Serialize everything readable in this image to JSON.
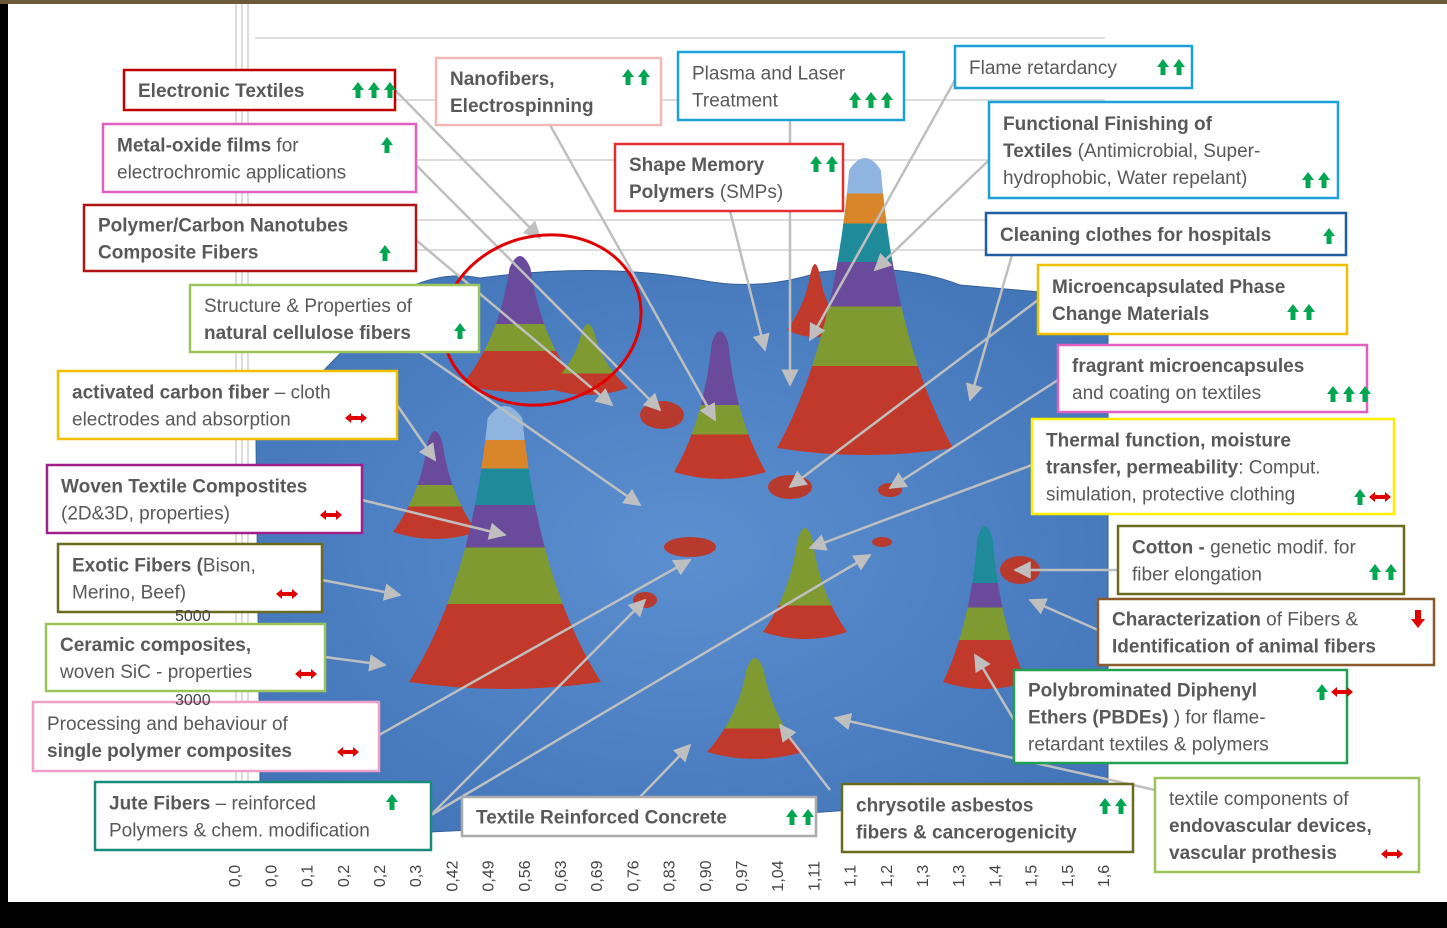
{
  "labels": [
    {
      "lines": [
        [
          "Electronic Textiles"
        ]
      ]
    },
    {
      "lines": [
        [
          "Metal-oxide films",
          " for"
        ],
        [
          "electrochromic applications"
        ]
      ]
    },
    {
      "lines": [
        [
          "Polymer/Carbon Nanotubes"
        ],
        [
          "Composite Fibers"
        ]
      ]
    },
    {
      "lines": [
        [
          "Nanofibers,"
        ],
        [
          "Electrospinning"
        ]
      ]
    },
    {
      "lines": [
        [
          "Plasma and Laser"
        ],
        [
          "Treatment"
        ]
      ]
    },
    {
      "lines": [
        [
          "Flame retardancy"
        ]
      ]
    },
    {
      "lines": [
        [
          "Functional Finishing of"
        ],
        [
          "Textiles",
          " (Antimicrobial, Super-"
        ],
        [
          "hydrophobic, Water repelant)"
        ]
      ]
    },
    {
      "lines": [
        [
          "Shape Memory"
        ],
        [
          "Polymers",
          " (SMPs)"
        ]
      ]
    },
    {
      "lines": [
        [
          "Cleaning clothes for hospitals"
        ]
      ]
    },
    {
      "lines": [
        [
          "Structure & Properties of"
        ],
        [
          "natural cellulose fibers"
        ]
      ]
    },
    {
      "lines": [
        [
          "Microencapsulated Phase"
        ],
        [
          "Change Materials"
        ]
      ]
    },
    {
      "lines": [
        [
          "fragrant microencapsules"
        ],
        [
          "and coating on textiles"
        ]
      ]
    },
    {
      "lines": [
        [
          "activated carbon fiber",
          " – cloth"
        ],
        [
          "electrodes and absorption"
        ]
      ]
    },
    {
      "lines": [
        [
          "Thermal function, moisture"
        ],
        [
          "transfer, permeability",
          ": Comput."
        ],
        [
          "simulation, protective clothing"
        ]
      ]
    },
    {
      "lines": [
        [
          "Woven Textile Compostites"
        ],
        [
          "(2D&3D, properties)"
        ]
      ]
    },
    {
      "lines": [
        [
          "Exotic Fibers (",
          "Bison,"
        ],
        [
          "Merino, Beef)"
        ]
      ]
    },
    {
      "lines": [
        [
          "Cotton -",
          " genetic modif. for"
        ],
        [
          "fiber elongation"
        ]
      ]
    },
    {
      "lines": [
        [
          "Characterization",
          " of Fibers &"
        ],
        [
          "Identification of animal fibers"
        ]
      ]
    },
    {
      "lines": [
        [
          "Ceramic composites,"
        ],
        [
          "woven SiC - properties"
        ]
      ]
    },
    {
      "lines": [
        [
          "Polybrominated Diphenyl"
        ],
        [
          "Ethers (PBDEs)",
          " ) for flame-"
        ],
        [
          "retardant textiles & polymers"
        ]
      ]
    },
    {
      "lines": [
        [
          "Processing and behaviour of"
        ],
        [
          "single polymer composites"
        ]
      ]
    },
    {
      "lines": [
        [
          "Jute Fibers",
          " – reinforced"
        ],
        [
          "Polymers & chem. modification"
        ]
      ]
    },
    {
      "lines": [
        [
          "Textile Reinforced Concrete"
        ]
      ]
    },
    {
      "lines": [
        [
          "chrysotile asbestos"
        ],
        [
          "fibers & cancerogenicity"
        ]
      ]
    },
    {
      "lines": [
        [
          "textile components of"
        ],
        [
          "endovascular devices,"
        ],
        [
          "vascular prothesis"
        ]
      ]
    }
  ],
  "x_axis_labels": [
    "0,0",
    "0,0",
    "0,1",
    "0,2",
    "0,2",
    "0,3",
    "0,42",
    "0,49",
    "0,56",
    "0,63",
    "0,69",
    "0,76",
    "0,83",
    "0,90",
    "0,97",
    "1,04",
    "1,11",
    "1,1",
    "1,2",
    "1,3",
    "1,3",
    "1,4",
    "1,5",
    "1,5",
    "1,6"
  ],
  "y_axis_labels": [
    "5000",
    "3000"
  ]
}
